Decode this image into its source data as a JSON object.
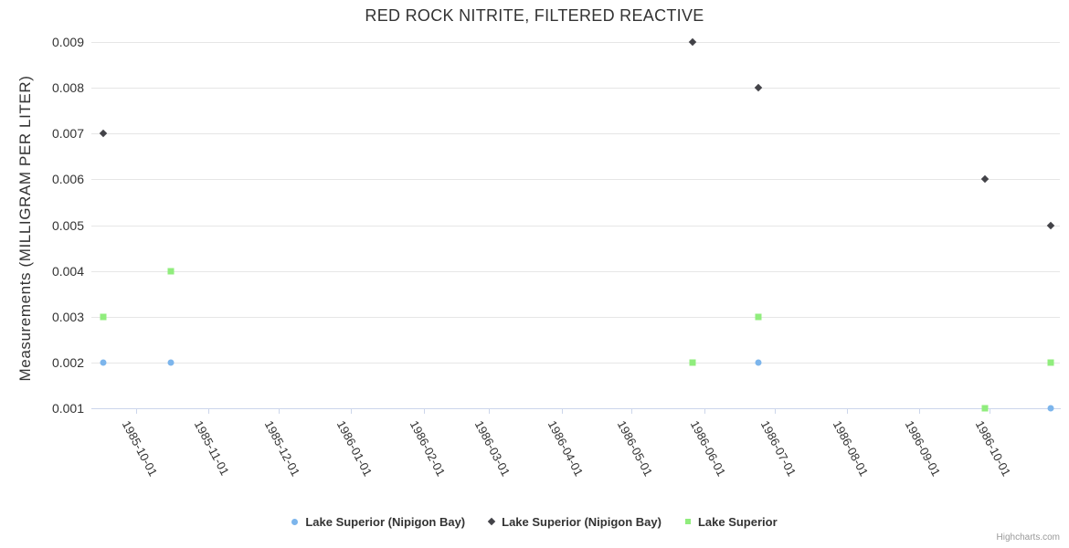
{
  "header": {
    "title": "RED ROCK NITRITE, FILTERED REACTIVE"
  },
  "credits": {
    "label": "Highcharts.com"
  },
  "colors": {
    "grid": "#e6e6e6",
    "axis_line": "#ccd6eb",
    "text": "#333333",
    "credits_text": "#999999",
    "series_blue": "#7cb5ec",
    "series_dark": "#434348",
    "series_green": "#90ed7d"
  },
  "chart_data": {
    "type": "scatter",
    "title": "RED ROCK NITRITE, FILTERED REACTIVE",
    "xlabel": "",
    "ylabel": "Measurements (MILLIGRAM PER LITER)",
    "grid": true,
    "legend_position": "bottom-center",
    "x_axis": {
      "type": "datetime",
      "min": "1985-09-12",
      "max": "1986-10-31",
      "label_rotation_deg": 62,
      "ticks": [
        "1985-10-01",
        "1985-11-01",
        "1985-12-01",
        "1986-01-01",
        "1986-02-01",
        "1986-03-01",
        "1986-04-01",
        "1986-05-01",
        "1986-06-01",
        "1986-07-01",
        "1986-08-01",
        "1986-09-01",
        "1986-10-01"
      ]
    },
    "y_axis": {
      "min": 0.001,
      "max": 0.009,
      "tick_interval": 0.001,
      "ticks": [
        "0.001",
        "0.002",
        "0.003",
        "0.004",
        "0.005",
        "0.006",
        "0.007",
        "0.008",
        "0.009"
      ]
    },
    "series": [
      {
        "name": "Lake Superior (Nipigon Bay)",
        "marker": "circle",
        "color": "#7cb5ec",
        "points": [
          {
            "x": "1985-09-17",
            "y": 0.002
          },
          {
            "x": "1985-10-16",
            "y": 0.002
          },
          {
            "x": "1986-06-24",
            "y": 0.002
          },
          {
            "x": "1986-10-27",
            "y": 0.001
          }
        ]
      },
      {
        "name": "Lake Superior (Nipigon Bay)",
        "marker": "diamond",
        "color": "#434348",
        "points": [
          {
            "x": "1985-09-17",
            "y": 0.007
          },
          {
            "x": "1986-05-27",
            "y": 0.009
          },
          {
            "x": "1986-06-24",
            "y": 0.008
          },
          {
            "x": "1986-09-29",
            "y": 0.006
          },
          {
            "x": "1986-10-27",
            "y": 0.005
          }
        ]
      },
      {
        "name": "Lake Superior",
        "marker": "square",
        "color": "#90ed7d",
        "points": [
          {
            "x": "1985-09-17",
            "y": 0.003
          },
          {
            "x": "1985-10-16",
            "y": 0.004
          },
          {
            "x": "1986-05-27",
            "y": 0.002
          },
          {
            "x": "1986-06-24",
            "y": 0.003
          },
          {
            "x": "1986-09-29",
            "y": 0.001
          },
          {
            "x": "1986-10-27",
            "y": 0.002
          }
        ]
      }
    ]
  }
}
